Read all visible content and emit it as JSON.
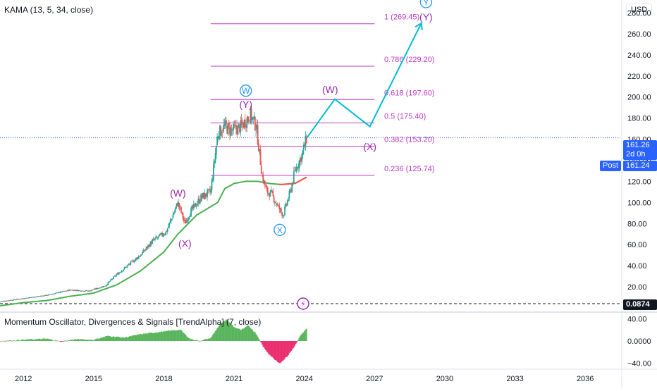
{
  "colors": {
    "candle_up": "#26a69a",
    "candle_down": "#ef5350",
    "kama": "#4caf50",
    "fib": "#c039c3",
    "wave_primary": "#9c27b0",
    "wave_intermediate": "#2196f3",
    "projection": "#00bcd4",
    "osc_pos": "#4caf50",
    "osc_neg": "#e91e63",
    "price_line": "#2962ff",
    "axis_text": "#131722"
  },
  "header": {
    "indicator_label": "KAMA (13, 5, 34, close)",
    "oscillator_label": "Momentum Oscillator, Divergences & Signals [TrendAlpha] (7, close)"
  },
  "price_axis": {
    "currency": "USD",
    "last_price": "161.26",
    "countdown": "2d 0h",
    "post_label": "Post",
    "post_price": "161.24",
    "osc_value": "0.0874"
  },
  "chart_data": [
    {
      "type": "candlestick",
      "title": "",
      "x": "year",
      "xlim": [
        2011.0,
        2037.5
      ],
      "ylim": [
        -2,
        292
      ],
      "y_ticks": [
        20,
        40,
        60,
        80,
        100,
        120,
        140,
        160,
        180,
        200,
        220,
        240,
        260,
        280
      ],
      "y_tick_labels": [
        "20.00",
        "40.00",
        "60.00",
        "80.00",
        "100.00",
        "120.00",
        "140.00",
        "160.00",
        "180.00",
        "200.00",
        "220.00",
        "240.00",
        "260.00",
        "280.00"
      ],
      "x_ticks": [
        2012,
        2015,
        2018,
        2021,
        2024,
        2027,
        2030,
        2033,
        2036
      ],
      "x_tick_labels": [
        "2012",
        "2015",
        "2018",
        "2021",
        "2024",
        "2027",
        "2030",
        "2033",
        "2036"
      ],
      "close_anchors": [
        [
          2011.0,
          6
        ],
        [
          2012.0,
          9
        ],
        [
          2013.0,
          12
        ],
        [
          2014.0,
          17
        ],
        [
          2014.8,
          16
        ],
        [
          2015.5,
          21
        ],
        [
          2016.0,
          32
        ],
        [
          2017.0,
          50
        ],
        [
          2017.5,
          63
        ],
        [
          2018.1,
          72
        ],
        [
          2018.6,
          100
        ],
        [
          2018.9,
          80
        ],
        [
          2019.1,
          90
        ],
        [
          2019.6,
          105
        ],
        [
          2020.0,
          110
        ],
        [
          2020.3,
          165
        ],
        [
          2020.6,
          172
        ],
        [
          2020.9,
          168
        ],
        [
          2021.3,
          172
        ],
        [
          2021.7,
          183
        ],
        [
          2021.95,
          172
        ],
        [
          2022.2,
          125
        ],
        [
          2022.4,
          110
        ],
        [
          2022.6,
          108
        ],
        [
          2022.9,
          95
        ],
        [
          2023.1,
          88
        ],
        [
          2023.4,
          110
        ],
        [
          2023.6,
          130
        ],
        [
          2023.9,
          145
        ],
        [
          2024.1,
          161.26
        ]
      ],
      "kama_anchors": [
        [
          2011.0,
          2
        ],
        [
          2012.0,
          5
        ],
        [
          2013.0,
          7
        ],
        [
          2014.0,
          11
        ],
        [
          2015.0,
          14
        ],
        [
          2016.0,
          22
        ],
        [
          2017.0,
          35
        ],
        [
          2018.0,
          53
        ],
        [
          2018.6,
          70
        ],
        [
          2019.4,
          88
        ],
        [
          2020.3,
          100
        ],
        [
          2020.6,
          113
        ],
        [
          2021.0,
          118
        ],
        [
          2021.5,
          120
        ],
        [
          2022.0,
          120
        ],
        [
          2022.5,
          118
        ],
        [
          2023.0,
          117
        ],
        [
          2023.6,
          118
        ],
        [
          2024.1,
          124
        ]
      ],
      "fib_levels": [
        {
          "ratio": "0.236",
          "value": 125.74
        },
        {
          "ratio": "0.382",
          "value": 153.2
        },
        {
          "ratio": "0.5",
          "value": 175.4
        },
        {
          "ratio": "0.618",
          "value": 197.6
        },
        {
          "ratio": "0.786",
          "value": 229.2
        },
        {
          "ratio": "1",
          "value": 269.45
        }
      ],
      "fib_x_range": [
        2020.0,
        2027.0
      ],
      "projection_path": [
        [
          2024.1,
          161
        ],
        [
          2025.3,
          198
        ],
        [
          2026.8,
          172
        ],
        [
          2029.0,
          270
        ]
      ],
      "wave_labels": [
        {
          "text": "(W)",
          "x": 2018.6,
          "y": 109,
          "style": "primary"
        },
        {
          "text": "(X)",
          "x": 2018.9,
          "y": 61,
          "style": "primary"
        },
        {
          "text": "(Y)",
          "x": 2021.5,
          "y": 193,
          "style": "primary"
        },
        {
          "text": "W",
          "x": 2021.5,
          "y": 206,
          "style": "circled"
        },
        {
          "text": "X",
          "x": 2022.95,
          "y": 74,
          "style": "circled"
        },
        {
          "text": "(W)",
          "x": 2025.1,
          "y": 207,
          "style": "primary"
        },
        {
          "text": "(X)",
          "x": 2026.8,
          "y": 153,
          "style": "primary"
        },
        {
          "text": "(Y)",
          "x": 2029.2,
          "y": 276,
          "style": "primary"
        },
        {
          "text": "Y",
          "x": 2029.2,
          "y": 290,
          "style": "circled"
        }
      ]
    },
    {
      "type": "bar",
      "title": "",
      "ylim": [
        -48,
        48
      ],
      "y_ticks": [
        40,
        0,
        -40
      ],
      "y_tick_labels": [
        "40.00",
        "0.0000",
        "−40.00"
      ],
      "values_anchors": [
        [
          2011.0,
          0
        ],
        [
          2012.0,
          2
        ],
        [
          2013.0,
          4
        ],
        [
          2013.6,
          -1
        ],
        [
          2014.2,
          3
        ],
        [
          2015.0,
          2
        ],
        [
          2015.6,
          9
        ],
        [
          2016.3,
          6
        ],
        [
          2017.0,
          12
        ],
        [
          2017.6,
          15
        ],
        [
          2018.2,
          18
        ],
        [
          2018.7,
          20
        ],
        [
          2019.1,
          4
        ],
        [
          2019.5,
          0
        ],
        [
          2020.0,
          5
        ],
        [
          2020.4,
          30
        ],
        [
          2020.7,
          38
        ],
        [
          2021.0,
          25
        ],
        [
          2021.3,
          20
        ],
        [
          2021.6,
          28
        ],
        [
          2021.95,
          12
        ],
        [
          2022.3,
          -14
        ],
        [
          2022.6,
          -28
        ],
        [
          2022.95,
          -40
        ],
        [
          2023.3,
          -26
        ],
        [
          2023.6,
          -8
        ],
        [
          2023.85,
          10
        ],
        [
          2024.1,
          22
        ]
      ]
    }
  ]
}
